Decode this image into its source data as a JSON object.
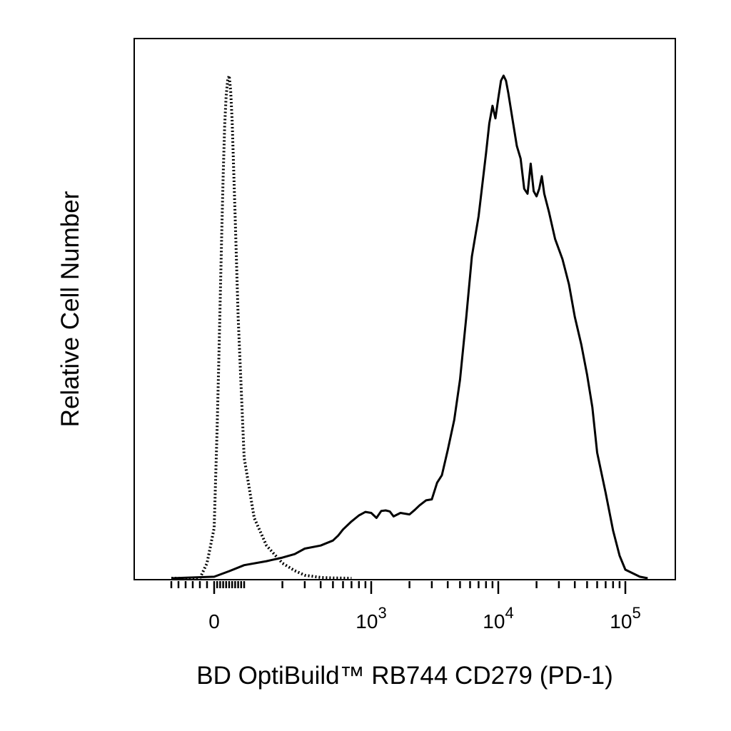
{
  "chart_data": {
    "type": "area",
    "title": "",
    "xlabel": "BD OptiBuild™ RB744 CD279 (PD-1)",
    "ylabel": "Relative Cell Number",
    "x_scale": "biexponential",
    "xlim": [
      -60,
      150000
    ],
    "ylim": [
      0,
      100
    ],
    "grid": false,
    "legend": "none",
    "colors": {
      "line": "#000000",
      "background": "#ffffff"
    },
    "x_ticks": [
      {
        "value": 0,
        "base": "0",
        "exp": ""
      },
      {
        "value": 1000,
        "base": "10",
        "exp": "3"
      },
      {
        "value": 10000,
        "base": "10",
        "exp": "4"
      },
      {
        "value": 100000,
        "base": "10",
        "exp": "5"
      }
    ],
    "series": [
      {
        "style": "dotted",
        "x": [
          -60,
          -20,
          -10,
          0,
          5,
          10,
          15,
          20,
          25,
          30,
          35,
          40,
          45,
          50,
          55,
          60,
          70,
          80,
          100,
          120,
          150,
          200,
          250,
          300,
          400,
          500,
          700
        ],
        "y": [
          0,
          0,
          3,
          10,
          20,
          30,
          42,
          55,
          68,
          80,
          90,
          96,
          99,
          100,
          97,
          91,
          72,
          52,
          24,
          12,
          6.5,
          3,
          1.5,
          0.6,
          0.15,
          0.05,
          0
        ]
      },
      {
        "style": "solid",
        "x": [
          -60,
          0,
          50,
          100,
          150,
          200,
          250,
          300,
          400,
          500,
          550,
          600,
          700,
          800,
          900,
          1000,
          1100,
          1200,
          1300,
          1400,
          1500,
          1700,
          2000,
          2200,
          2400,
          2700,
          3000,
          3300,
          3600,
          4000,
          4500,
          5000,
          5600,
          6200,
          7000,
          8000,
          8500,
          9000,
          9500,
          10000,
          10500,
          11000,
          11500,
          12000,
          13000,
          14000,
          15000,
          16000,
          17000,
          18000,
          19000,
          20000,
          21000,
          22000,
          23000,
          25000,
          28000,
          32000,
          36000,
          40000,
          45000,
          50000,
          55000,
          60000,
          70000,
          80000,
          90000,
          100000,
          130000,
          150000
        ],
        "y": [
          0,
          0.3,
          1.4,
          2.6,
          3.4,
          4.1,
          4.8,
          5.9,
          6.5,
          7.5,
          8.5,
          9.7,
          11.3,
          12.5,
          13.2,
          13.0,
          12.0,
          13.4,
          13.5,
          13.3,
          12.3,
          13.0,
          12.7,
          13.6,
          14.5,
          15.5,
          15.7,
          19.0,
          20.5,
          25.5,
          31.5,
          39.5,
          52.0,
          64.0,
          72.0,
          84.5,
          90.5,
          94.0,
          91.5,
          95.5,
          99.0,
          100.0,
          99.0,
          96.5,
          91.0,
          86.0,
          83.5,
          77.5,
          76.5,
          82.5,
          77.0,
          76.0,
          77.5,
          80.0,
          76.5,
          73.0,
          67.5,
          63.5,
          58.5,
          52.0,
          46.5,
          40.5,
          34.0,
          25.0,
          17.0,
          9.5,
          4.5,
          1.7,
          0.3,
          0
        ]
      }
    ]
  }
}
